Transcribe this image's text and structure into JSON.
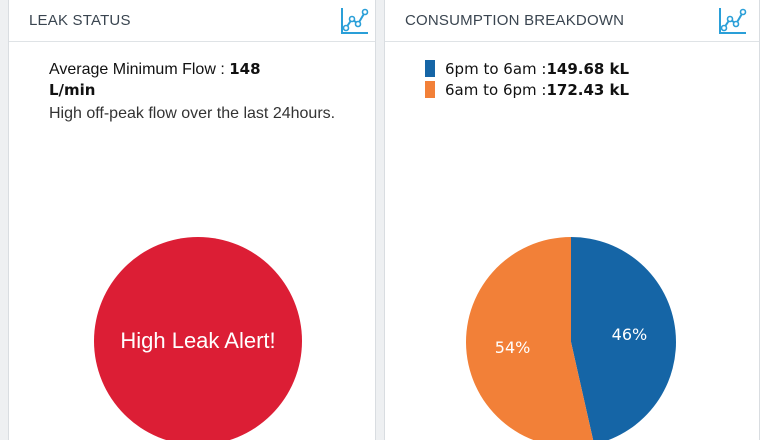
{
  "leak_panel": {
    "title": "LEAK STATUS",
    "chart_icon": "line-chart-icon",
    "flow_label": "Average Minimum Flow : ",
    "flow_value": "148",
    "flow_unit": "L/min",
    "note": "High off-peak flow over the last 24hours.",
    "alert": {
      "text": "High Leak Alert!",
      "color": "#dc1e35"
    }
  },
  "consumption_panel": {
    "title": "CONSUMPTION BREAKDOWN",
    "chart_icon": "line-chart-icon",
    "legend": [
      {
        "label": "6pm to 6am : ",
        "value": "149.68 kL",
        "color": "#1565a6"
      },
      {
        "label": "6am to 6pm : ",
        "value": "172.43 kL",
        "color": "#f28038"
      }
    ]
  },
  "chart_data": {
    "type": "pie",
    "categories": [
      "6pm to 6am",
      "6am to 6pm"
    ],
    "values": [
      149.68,
      172.43
    ],
    "unit": "kL",
    "percent_labels": [
      "46%",
      "54%"
    ],
    "colors": [
      "#1565a6",
      "#f28038"
    ],
    "start_angle_deg": 0,
    "direction": "clockwise"
  },
  "colors": {
    "icon_blue": "#2a9fd8",
    "border": "#d9dde1"
  }
}
